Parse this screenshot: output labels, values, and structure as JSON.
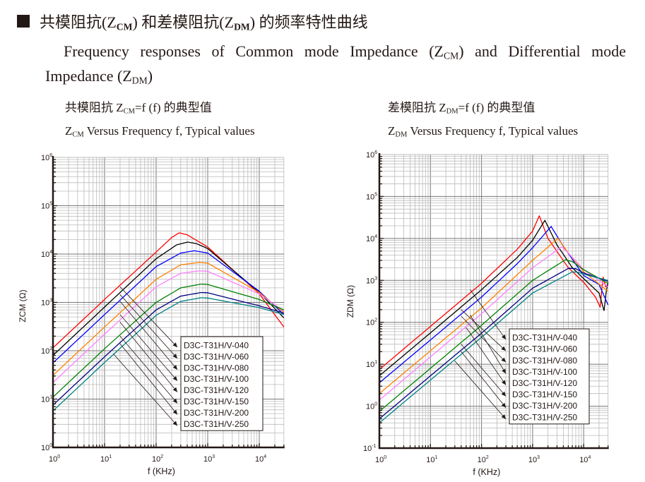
{
  "heading": {
    "prefix": "共模阻抗(Z",
    "sub1": "CM",
    "mid": ") 和差模阻抗(Z",
    "sub2": "DM",
    "suffix": ") 的频率特性曲线"
  },
  "english": {
    "part1": "Frequency responses of Common mode Impedance (Z",
    "sub1": "CM",
    "part2": ") and Differential mode Impedance (Z",
    "sub2": "DM",
    "part3": ")"
  },
  "captions": {
    "left": {
      "cn_prefix": "共模阻抗 Z",
      "cn_sub": "CM",
      "cn_suffix": "=f (f)  的典型值",
      "en_prefix": "Z",
      "en_sub": "CM",
      "en_suffix": " Versus Frequency f, Typical values"
    },
    "right": {
      "cn_prefix": "差模阻抗 Z",
      "cn_sub": "DM",
      "cn_suffix": "=f (f)  的典型值",
      "en_prefix": "Z",
      "en_sub": "DM",
      "en_suffix": " Versus Frequency f, Typical values"
    }
  },
  "colors": [
    "#ff0000",
    "#000000",
    "#0000ff",
    "#ff8000",
    "#ff80ff",
    "#008000",
    "#000080",
    "#008080"
  ],
  "chart_data": [
    {
      "type": "line",
      "title": "ZCM Versus Frequency f, Typical values",
      "xlabel": "f (KHz)",
      "ylabel": "ZCM (Ω)",
      "xscale": "log",
      "yscale": "log",
      "xlim": [
        1,
        30000
      ],
      "ylim": [
        1,
        1000000
      ],
      "xticks": [
        {
          "v": 1,
          "base": "10",
          "exp": "0"
        },
        {
          "v": 10,
          "base": "10",
          "exp": "1"
        },
        {
          "v": 100,
          "base": "10",
          "exp": "2"
        },
        {
          "v": 1000,
          "base": "10",
          "exp": "3"
        },
        {
          "v": 10000,
          "base": "10",
          "exp": "4"
        }
      ],
      "yticks": [
        {
          "v": 1,
          "base": "10",
          "exp": "0"
        },
        {
          "v": 10,
          "base": "10",
          "exp": "1"
        },
        {
          "v": 100,
          "base": "10",
          "exp": "2"
        },
        {
          "v": 1000,
          "base": "10",
          "exp": "3"
        },
        {
          "v": 10000,
          "base": "10",
          "exp": "4"
        },
        {
          "v": 100000,
          "base": "10",
          "exp": "5"
        },
        {
          "v": 1000000,
          "base": "10",
          "exp": "6"
        }
      ],
      "grid": true,
      "legend_position": "bottom-center",
      "series": [
        {
          "name": "D3C-T31H/V-040",
          "color": "#ff0000",
          "points": [
            [
              1,
              115
            ],
            [
              10,
              1150
            ],
            [
              100,
              11000
            ],
            [
              200,
              22000
            ],
            [
              280,
              27500
            ],
            [
              400,
              25000
            ],
            [
              1000,
              14000
            ],
            [
              10000,
              1500
            ],
            [
              30000,
              310
            ]
          ],
          "label_anchor": [
            20,
            2100
          ]
        },
        {
          "name": "D3C-T31H/V-060",
          "color": "#000000",
          "points": [
            [
              1,
              80
            ],
            [
              10,
              800
            ],
            [
              100,
              8000
            ],
            [
              250,
              15500
            ],
            [
              410,
              17700
            ],
            [
              600,
              16500
            ],
            [
              1000,
              13000
            ],
            [
              10000,
              1600
            ],
            [
              30000,
              480
            ]
          ],
          "label_anchor": [
            20,
            1450
          ]
        },
        {
          "name": "D3C-T31H/V-080",
          "color": "#0000ff",
          "points": [
            [
              1,
              56
            ],
            [
              10,
              560
            ],
            [
              100,
              5500
            ],
            [
              300,
              10500
            ],
            [
              550,
              11700
            ],
            [
              1000,
              10500
            ],
            [
              10000,
              1700
            ],
            [
              30000,
              560
            ]
          ],
          "label_anchor": [
            20,
            1050
          ]
        },
        {
          "name": "D3C-T31H/V-100",
          "color": "#ff8000",
          "points": [
            [
              1,
              31
            ],
            [
              10,
              310
            ],
            [
              100,
              3000
            ],
            [
              300,
              6000
            ],
            [
              680,
              6700
            ],
            [
              1000,
              6500
            ],
            [
              10000,
              1600
            ],
            [
              30000,
              620
            ]
          ],
          "label_anchor": [
            20,
            560
          ]
        },
        {
          "name": "D3C-T31H/V-120",
          "color": "#ff80ff",
          "points": [
            [
              1,
              22
            ],
            [
              10,
              220
            ],
            [
              100,
              2100
            ],
            [
              300,
              4000
            ],
            [
              700,
              4500
            ],
            [
              1000,
              4400
            ],
            [
              10000,
              1500
            ],
            [
              30000,
              660
            ]
          ],
          "label_anchor": [
            20,
            390
          ]
        },
        {
          "name": "D3C-T31H/V-150",
          "color": "#008000",
          "points": [
            [
              1,
              11
            ],
            [
              10,
              110
            ],
            [
              100,
              1000
            ],
            [
              300,
              2000
            ],
            [
              750,
              2400
            ],
            [
              1000,
              2350
            ],
            [
              10000,
              1150
            ],
            [
              30000,
              700
            ]
          ],
          "label_anchor": [
            20,
            200
          ]
        },
        {
          "name": "D3C-T31H/V-200",
          "color": "#000080",
          "points": [
            [
              1,
              7.5
            ],
            [
              10,
              75
            ],
            [
              100,
              700
            ],
            [
              300,
              1350
            ],
            [
              750,
              1600
            ],
            [
              1000,
              1580
            ],
            [
              10000,
              850
            ],
            [
              30000,
              600
            ]
          ],
          "label_anchor": [
            20,
            140
          ]
        },
        {
          "name": "D3C-T31H/V-250",
          "color": "#008080",
          "points": [
            [
              1,
              5.7
            ],
            [
              10,
              57
            ],
            [
              100,
              540
            ],
            [
              300,
              1050
            ],
            [
              750,
              1250
            ],
            [
              1000,
              1230
            ],
            [
              10000,
              780
            ],
            [
              30000,
              560
            ]
          ],
          "label_anchor": [
            15,
            85
          ]
        }
      ]
    },
    {
      "type": "line",
      "title": "ZDM Versus Frequency f, Typical values",
      "xlabel": "f (KHz)",
      "ylabel": "ZDM (Ω)",
      "xscale": "log",
      "yscale": "log",
      "xlim": [
        1,
        30000
      ],
      "ylim": [
        0.1,
        1000000
      ],
      "xticks": [
        {
          "v": 1,
          "base": "10",
          "exp": "0"
        },
        {
          "v": 10,
          "base": "10",
          "exp": "1"
        },
        {
          "v": 100,
          "base": "10",
          "exp": "2"
        },
        {
          "v": 1000,
          "base": "10",
          "exp": "3"
        },
        {
          "v": 10000,
          "base": "10",
          "exp": "4"
        }
      ],
      "yticks": [
        {
          "v": 0.1,
          "base": "10",
          "exp": "-1"
        },
        {
          "v": 1,
          "base": "10",
          "exp": "0"
        },
        {
          "v": 10,
          "base": "10",
          "exp": "1"
        },
        {
          "v": 100,
          "base": "10",
          "exp": "2"
        },
        {
          "v": 1000,
          "base": "10",
          "exp": "3"
        },
        {
          "v": 10000,
          "base": "10",
          "exp": "4"
        },
        {
          "v": 100000,
          "base": "10",
          "exp": "5"
        },
        {
          "v": 1000000,
          "base": "10",
          "exp": "6"
        }
      ],
      "grid": true,
      "legend_position": "bottom-center",
      "series": [
        {
          "name": "D3C-T31H/V-040",
          "color": "#ff0000",
          "points": [
            [
              1,
              7.5
            ],
            [
              10,
              80
            ],
            [
              100,
              850
            ],
            [
              500,
              5500
            ],
            [
              1000,
              15000
            ],
            [
              1350,
              34600
            ],
            [
              2000,
              10000
            ],
            [
              5000,
              2000
            ],
            [
              10000,
              900
            ],
            [
              17000,
              400
            ],
            [
              21000,
              230
            ],
            [
              24000,
              1200
            ],
            [
              27000,
              700
            ],
            [
              30000,
              800
            ]
          ],
          "label_anchor": [
            60,
            600
          ]
        },
        {
          "name": "D3C-T31H/V-060",
          "color": "#000000",
          "points": [
            [
              1,
              5.3
            ],
            [
              10,
              56
            ],
            [
              100,
              600
            ],
            [
              500,
              3500
            ],
            [
              1000,
              9000
            ],
            [
              1740,
              27000
            ],
            [
              3000,
              7000
            ],
            [
              6000,
              2000
            ],
            [
              10000,
              1100
            ],
            [
              20000,
              500
            ],
            [
              25000,
              190
            ],
            [
              28000,
              600
            ],
            [
              30000,
              900
            ]
          ],
          "label_anchor": [
            40,
            200
          ]
        },
        {
          "name": "D3C-T31H/V-080",
          "color": "#0000ff",
          "points": [
            [
              1,
              3.6
            ],
            [
              10,
              38
            ],
            [
              100,
              400
            ],
            [
              500,
              2500
            ],
            [
              1000,
              6000
            ],
            [
              2300,
              19300
            ],
            [
              4000,
              6500
            ],
            [
              10000,
              1300
            ],
            [
              20000,
              800
            ],
            [
              30000,
              260
            ]
          ],
          "label_anchor": [
            40,
            140
          ]
        },
        {
          "name": "D3C-T31H/V-100",
          "color": "#ff8000",
          "points": [
            [
              1,
              2.0
            ],
            [
              10,
              21
            ],
            [
              100,
              220
            ],
            [
              1000,
              3000
            ],
            [
              3150,
              10000
            ],
            [
              5000,
              4500
            ],
            [
              10000,
              1600
            ],
            [
              30000,
              550
            ]
          ],
          "label_anchor": [
            60,
            150
          ]
        },
        {
          "name": "D3C-T31H/V-120",
          "color": "#ff80ff",
          "points": [
            [
              1,
              1.4
            ],
            [
              10,
              15
            ],
            [
              100,
              160
            ],
            [
              1000,
              2000
            ],
            [
              3700,
              6300
            ],
            [
              5000,
              4500
            ],
            [
              10000,
              1800
            ],
            [
              30000,
              700
            ]
          ],
          "label_anchor": [
            50,
            75
          ]
        },
        {
          "name": "D3C-T31H/V-150",
          "color": "#008000",
          "points": [
            [
              1,
              0.75
            ],
            [
              10,
              8
            ],
            [
              100,
              85
            ],
            [
              1000,
              1000
            ],
            [
              4400,
              3100
            ],
            [
              6000,
              2800
            ],
            [
              10000,
              1800
            ],
            [
              30000,
              850
            ]
          ],
          "label_anchor": [
            40,
            30
          ]
        },
        {
          "name": "D3C-T31H/V-200",
          "color": "#000080",
          "points": [
            [
              1,
              0.5
            ],
            [
              10,
              5.3
            ],
            [
              100,
              55
            ],
            [
              1000,
              650
            ],
            [
              5100,
              1950
            ],
            [
              7000,
              1900
            ],
            [
              10000,
              1500
            ],
            [
              30000,
              950
            ]
          ],
          "label_anchor": [
            40,
            20
          ]
        },
        {
          "name": "D3C-T31H/V-250",
          "color": "#008080",
          "points": [
            [
              1,
              0.4
            ],
            [
              10,
              4.2
            ],
            [
              100,
              44
            ],
            [
              1000,
              500
            ],
            [
              6000,
              1600
            ],
            [
              8000,
              1550
            ],
            [
              10000,
              1400
            ],
            [
              30000,
              1000
            ]
          ],
          "label_anchor": [
            30,
            12
          ]
        }
      ]
    }
  ]
}
